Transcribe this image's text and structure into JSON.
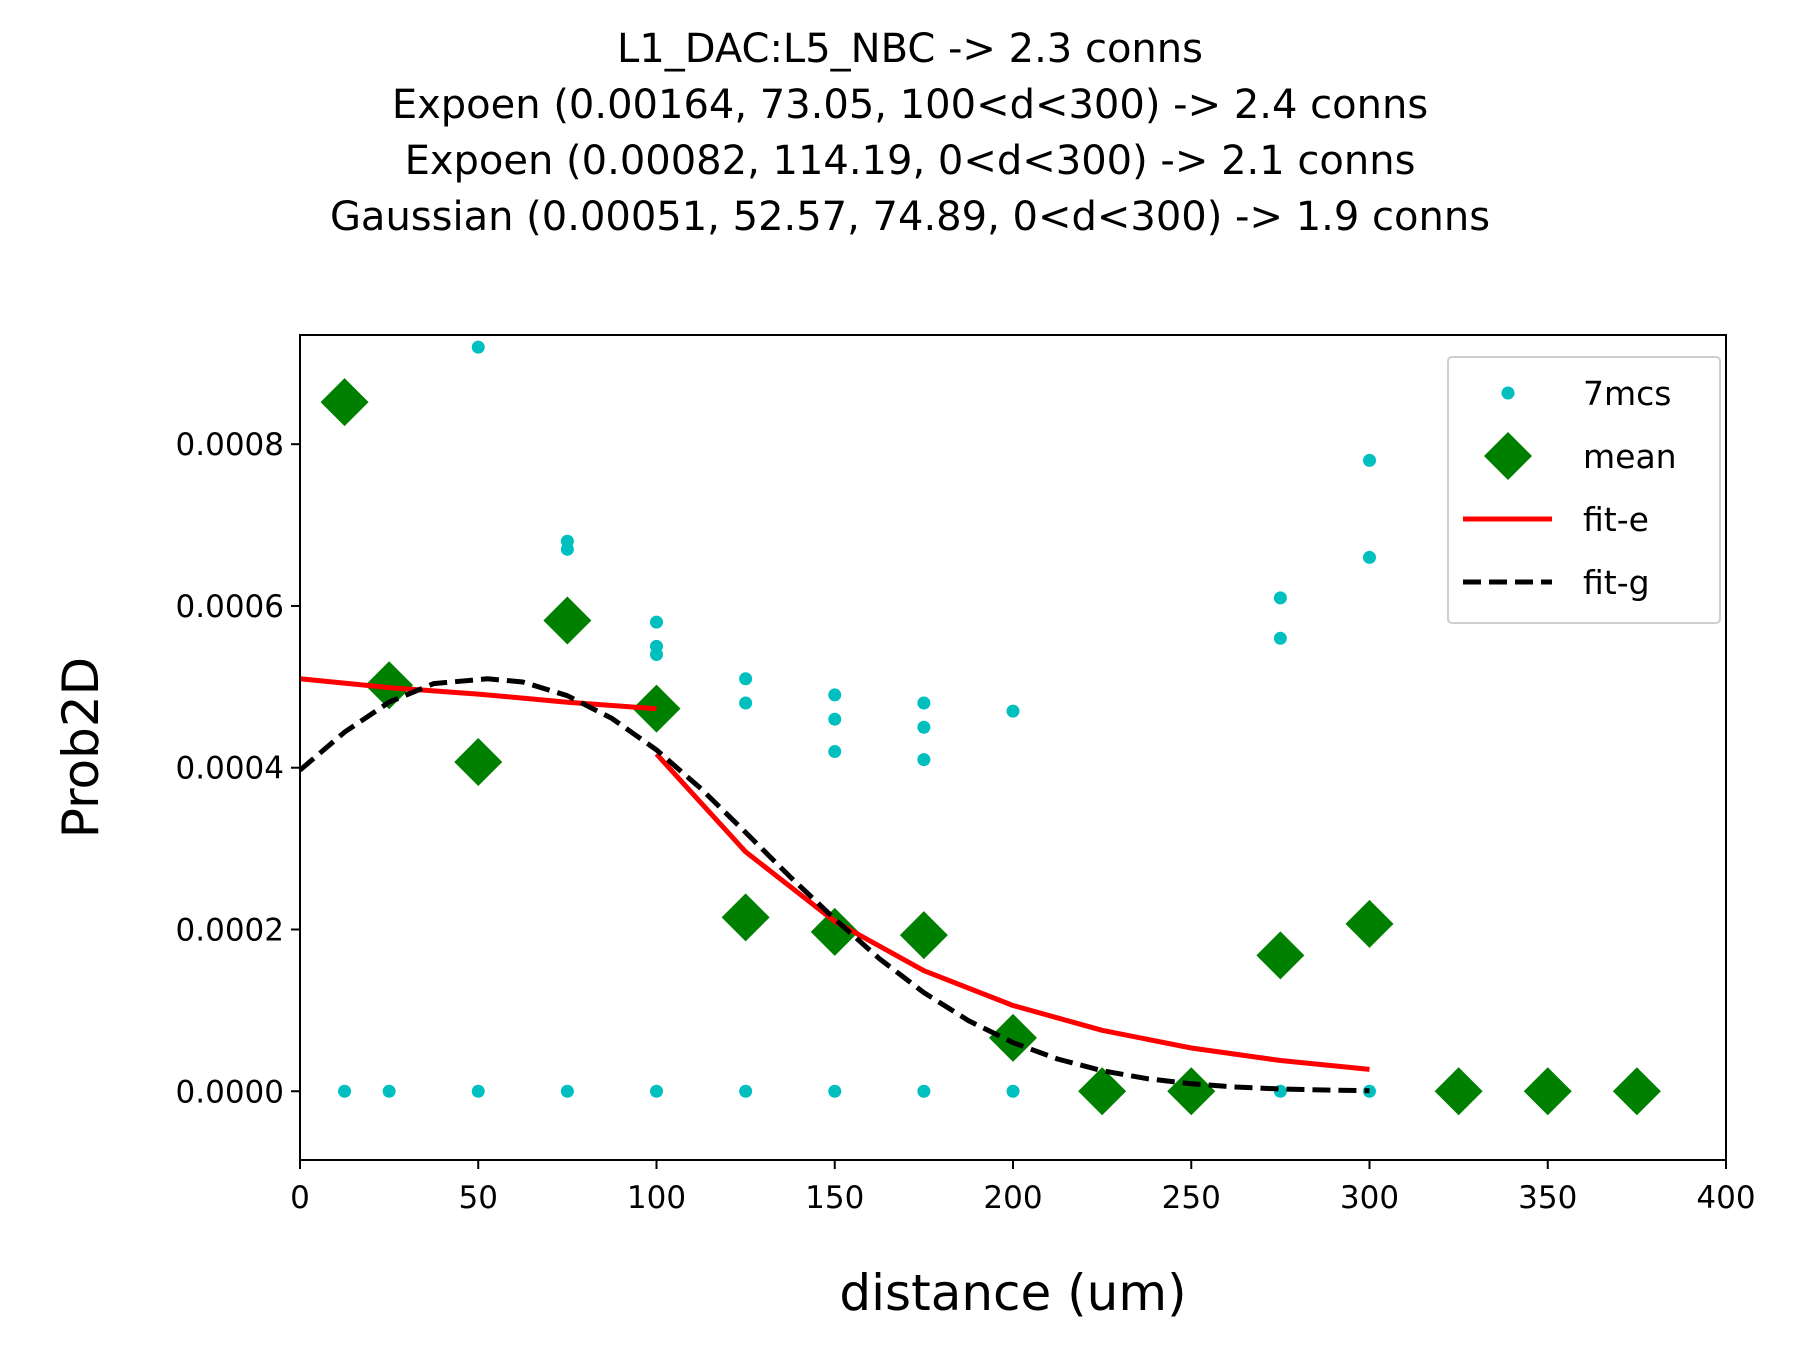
{
  "chart_data": {
    "type": "scatter",
    "title_lines": [
      "L1_DAC:L5_NBC -> 2.3 conns",
      "Expoen (0.00164, 73.05, 100<d<300) -> 2.4 conns",
      "Expoen (0.00082, 114.19, 0<d<300) -> 2.1 conns",
      "Gaussian (0.00051, 52.57, 74.89, 0<d<300) -> 1.9 conns"
    ],
    "xlabel": "distance (um)",
    "ylabel": "Prob2D",
    "xlim": [
      0,
      400
    ],
    "ylim": [
      -8.5e-05,
      0.000935
    ],
    "xticks": [
      0,
      50,
      100,
      150,
      200,
      250,
      300,
      350,
      400
    ],
    "xtick_labels": [
      "0",
      "50",
      "100",
      "150",
      "200",
      "250",
      "300",
      "350",
      "400"
    ],
    "yticks": [
      0,
      0.0002,
      0.0004,
      0.0006,
      0.0008
    ],
    "ytick_labels": [
      "0.0000",
      "0.0002",
      "0.0004",
      "0.0006",
      "0.0008"
    ],
    "grid": false,
    "legend_position": "top-right",
    "series": [
      {
        "name": "7mcs",
        "type": "scatter",
        "marker": "dot",
        "color": "#00bfbf",
        "points": [
          [
            12.5,
            0
          ],
          [
            25,
            0
          ],
          [
            50,
            0.00092
          ],
          [
            50,
            0
          ],
          [
            75,
            0.00068
          ],
          [
            75,
            0.00067
          ],
          [
            75,
            0
          ],
          [
            100,
            0.00058
          ],
          [
            100,
            0.00055
          ],
          [
            100,
            0.00054
          ],
          [
            100,
            0
          ],
          [
            125,
            0.00051
          ],
          [
            125,
            0.00048
          ],
          [
            125,
            0
          ],
          [
            150,
            0.00049
          ],
          [
            150,
            0.00046
          ],
          [
            150,
            0.00042
          ],
          [
            150,
            0
          ],
          [
            175,
            0.00048
          ],
          [
            175,
            0.00045
          ],
          [
            175,
            0.00041
          ],
          [
            175,
            0
          ],
          [
            200,
            0.00047
          ],
          [
            200,
            0
          ],
          [
            275,
            0.00061
          ],
          [
            275,
            0.00056
          ],
          [
            275,
            0
          ],
          [
            300,
            0.00078
          ],
          [
            300,
            0.00066
          ],
          [
            300,
            0
          ]
        ]
      },
      {
        "name": "mean",
        "type": "scatter",
        "marker": "diamond",
        "color": "#008000",
        "points": [
          [
            12.5,
            0.000852
          ],
          [
            25,
            0.000502
          ],
          [
            50,
            0.000407
          ],
          [
            75,
            0.000582
          ],
          [
            100,
            0.000473
          ],
          [
            125,
            0.000215
          ],
          [
            150,
            0.000197
          ],
          [
            175,
            0.000193
          ],
          [
            200,
            6.6e-05
          ],
          [
            225,
            0
          ],
          [
            250,
            0
          ],
          [
            275,
            0.000168
          ],
          [
            300,
            0.000207
          ],
          [
            325,
            0
          ],
          [
            350,
            0
          ],
          [
            375,
            0
          ]
        ]
      },
      {
        "name": "fit-e",
        "type": "line",
        "style": "solid",
        "color": "#ff0000",
        "segments": [
          [
            [
              0,
              0.00051
            ],
            [
              25,
              0.000499
            ],
            [
              50,
              0.000491
            ],
            [
              75,
              0.000481
            ],
            [
              100,
              0.000473
            ]
          ],
          [
            [
              100,
              0.000417
            ],
            [
              125,
              0.000296
            ],
            [
              150,
              0.00021
            ],
            [
              175,
              0.000149
            ],
            [
              200,
              0.000106
            ],
            [
              225,
              7.54e-05
            ],
            [
              250,
              5.35e-05
            ],
            [
              275,
              3.8e-05
            ],
            [
              300,
              2.7e-05
            ]
          ]
        ]
      },
      {
        "name": "fit-g",
        "type": "line",
        "style": "dashed",
        "color": "#000000",
        "segments": [
          [
            [
              0,
              0.000397
            ],
            [
              12.5,
              0.000444
            ],
            [
              25,
              0.000481
            ],
            [
              37.5,
              0.000504
            ],
            [
              52.57,
              0.00051
            ],
            [
              62.5,
              0.000506
            ],
            [
              75,
              0.000489
            ],
            [
              87.5,
              0.000461
            ],
            [
              100,
              0.000422
            ],
            [
              112.5,
              0.000374
            ],
            [
              125,
              0.00032
            ],
            [
              137.5,
              0.000265
            ],
            [
              150,
              0.000213
            ],
            [
              162.5,
              0.000164
            ],
            [
              175,
              0.000122
            ],
            [
              187.5,
              8.74e-05
            ],
            [
              200,
              6.02e-05
            ],
            [
              212.5,
              3.99e-05
            ],
            [
              225,
              2.54e-05
            ],
            [
              237.5,
              1.56e-05
            ],
            [
              250,
              9.2e-06
            ],
            [
              262.5,
              5.2e-06
            ],
            [
              275,
              2.8e-06
            ],
            [
              287.5,
              1.5e-06
            ],
            [
              300,
              7e-07
            ]
          ]
        ]
      }
    ]
  }
}
